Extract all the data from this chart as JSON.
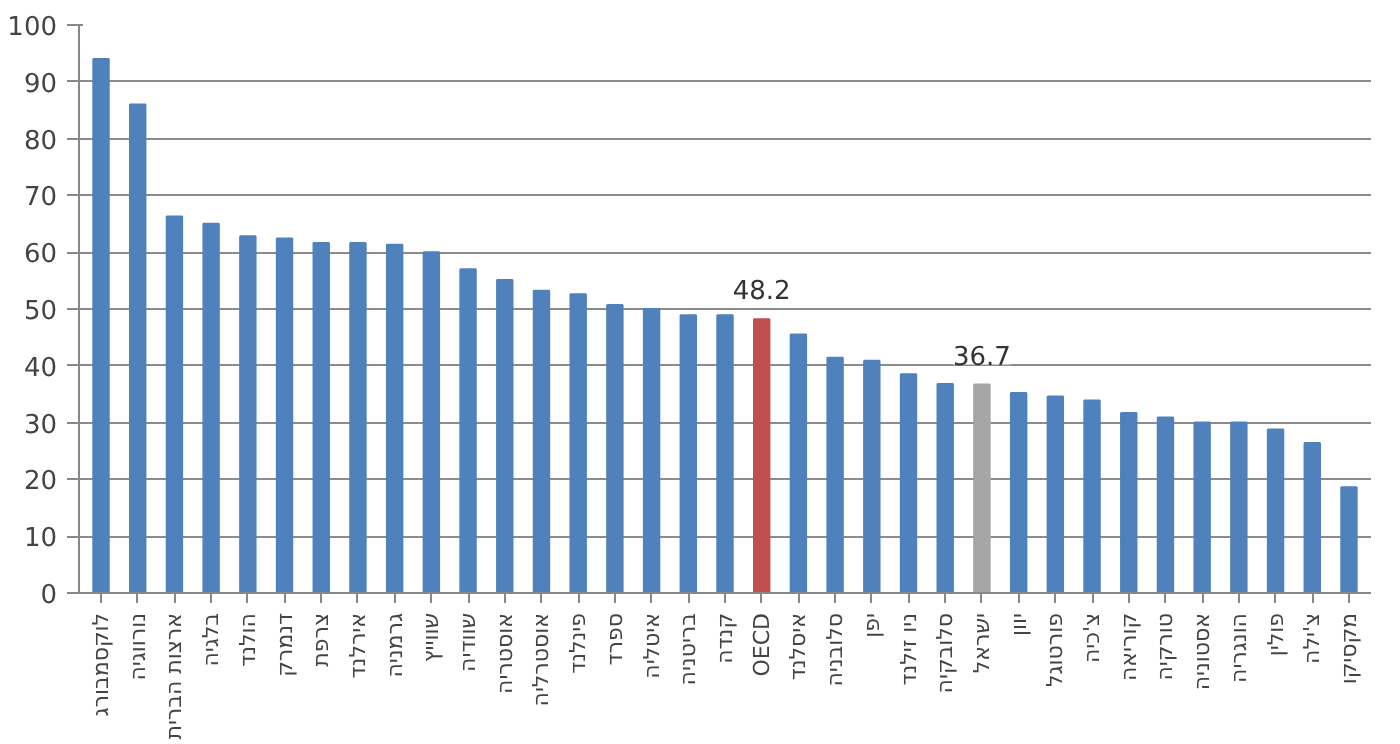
{
  "chart_data": {
    "type": "bar",
    "categories": [
      "לוקסמבורג",
      "נורווגיה",
      "ארצות הברית",
      "בלגיה",
      "הולנד",
      "דנמרק",
      "צרפת",
      "אירלנד",
      "גרמניה",
      "שווייץ",
      "שוודיה",
      "אוסטריה",
      "אוסטרליה",
      "פינלנד",
      "ספרד",
      "איטליה",
      "בריטניה",
      "קנדה",
      "OECD",
      "איסלנד",
      "סלובניה",
      "יפן",
      "ניו זילנד",
      "סלובקיה",
      "ישראל",
      "יוון",
      "פורטוגל",
      "צ'כיה",
      "קוריאה",
      "טורקיה",
      "אסטוניה",
      "הונגריה",
      "פולין",
      "צ'ילה",
      "מקסיקו"
    ],
    "values": [
      94,
      86,
      66.3,
      65,
      62.8,
      62.4,
      61.6,
      61.6,
      61.3,
      60,
      57,
      55.1,
      53.2,
      52.6,
      50.7,
      50,
      48.9,
      48.9,
      48.2,
      45.5,
      41.4,
      40.9,
      38.5,
      36.8,
      36.7,
      35.2,
      34.6,
      33.9,
      31.7,
      30.9,
      30,
      30,
      28.8,
      26.4,
      18.6
    ],
    "colors": [
      "#4f81bd",
      "#4f81bd",
      "#4f81bd",
      "#4f81bd",
      "#4f81bd",
      "#4f81bd",
      "#4f81bd",
      "#4f81bd",
      "#4f81bd",
      "#4f81bd",
      "#4f81bd",
      "#4f81bd",
      "#4f81bd",
      "#4f81bd",
      "#4f81bd",
      "#4f81bd",
      "#4f81bd",
      "#4f81bd",
      "#c0504d",
      "#4f81bd",
      "#4f81bd",
      "#4f81bd",
      "#4f81bd",
      "#4f81bd",
      "#a5a5a5",
      "#4f81bd",
      "#4f81bd",
      "#4f81bd",
      "#4f81bd",
      "#4f81bd",
      "#4f81bd",
      "#4f81bd",
      "#4f81bd",
      "#4f81bd",
      "#4f81bd"
    ],
    "value_labels": [
      null,
      null,
      null,
      null,
      null,
      null,
      null,
      null,
      null,
      null,
      null,
      null,
      null,
      null,
      null,
      null,
      null,
      null,
      "48.2",
      null,
      null,
      null,
      null,
      null,
      "36.7",
      null,
      null,
      null,
      null,
      null,
      null,
      null,
      null,
      null,
      null
    ],
    "ylim": [
      0,
      100
    ],
    "yticks": [
      0,
      10,
      20,
      30,
      40,
      50,
      60,
      70,
      80,
      90,
      100
    ],
    "grid": "y"
  }
}
